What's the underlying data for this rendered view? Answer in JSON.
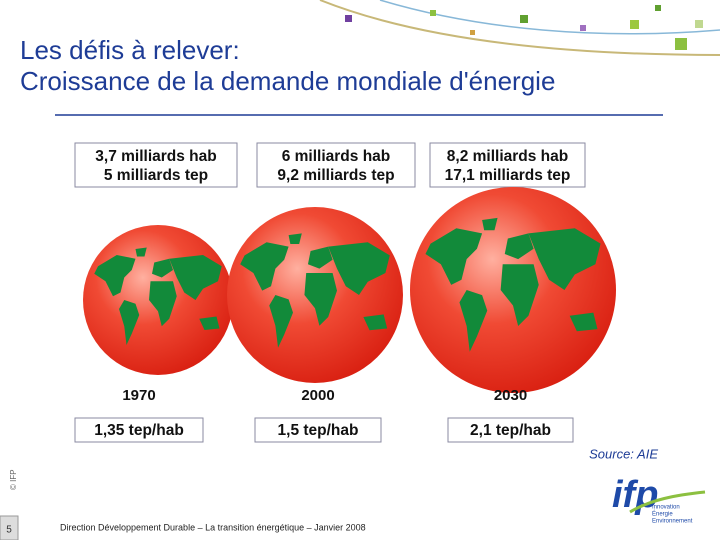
{
  "header": {
    "title_line1": "Les défis à relever:",
    "title_line2": "Croissance de la  demande mondiale d'énergie"
  },
  "panels": [
    {
      "population": "3,7 milliards hab",
      "energy": "5 milliards tep",
      "year": "1970",
      "per_capita": "1,35 tep/hab"
    },
    {
      "population": "6 milliards hab",
      "energy": "9,2 milliards tep",
      "year": "2000",
      "per_capita": "1,5 tep/hab"
    },
    {
      "population": "8,2 milliards hab",
      "energy": "17,1 milliards tep",
      "year": "2030",
      "per_capita": "2,1 tep/hab"
    }
  ],
  "source": "Source: AIE",
  "copyright": "© IFP",
  "footer": {
    "page": "5",
    "text": "Direction Développement Durable – La transition énergétique – Janvier 2008"
  },
  "logo": {
    "name": "ifp",
    "lines": [
      "Innovation",
      "Énergie",
      "Environnement"
    ]
  }
}
